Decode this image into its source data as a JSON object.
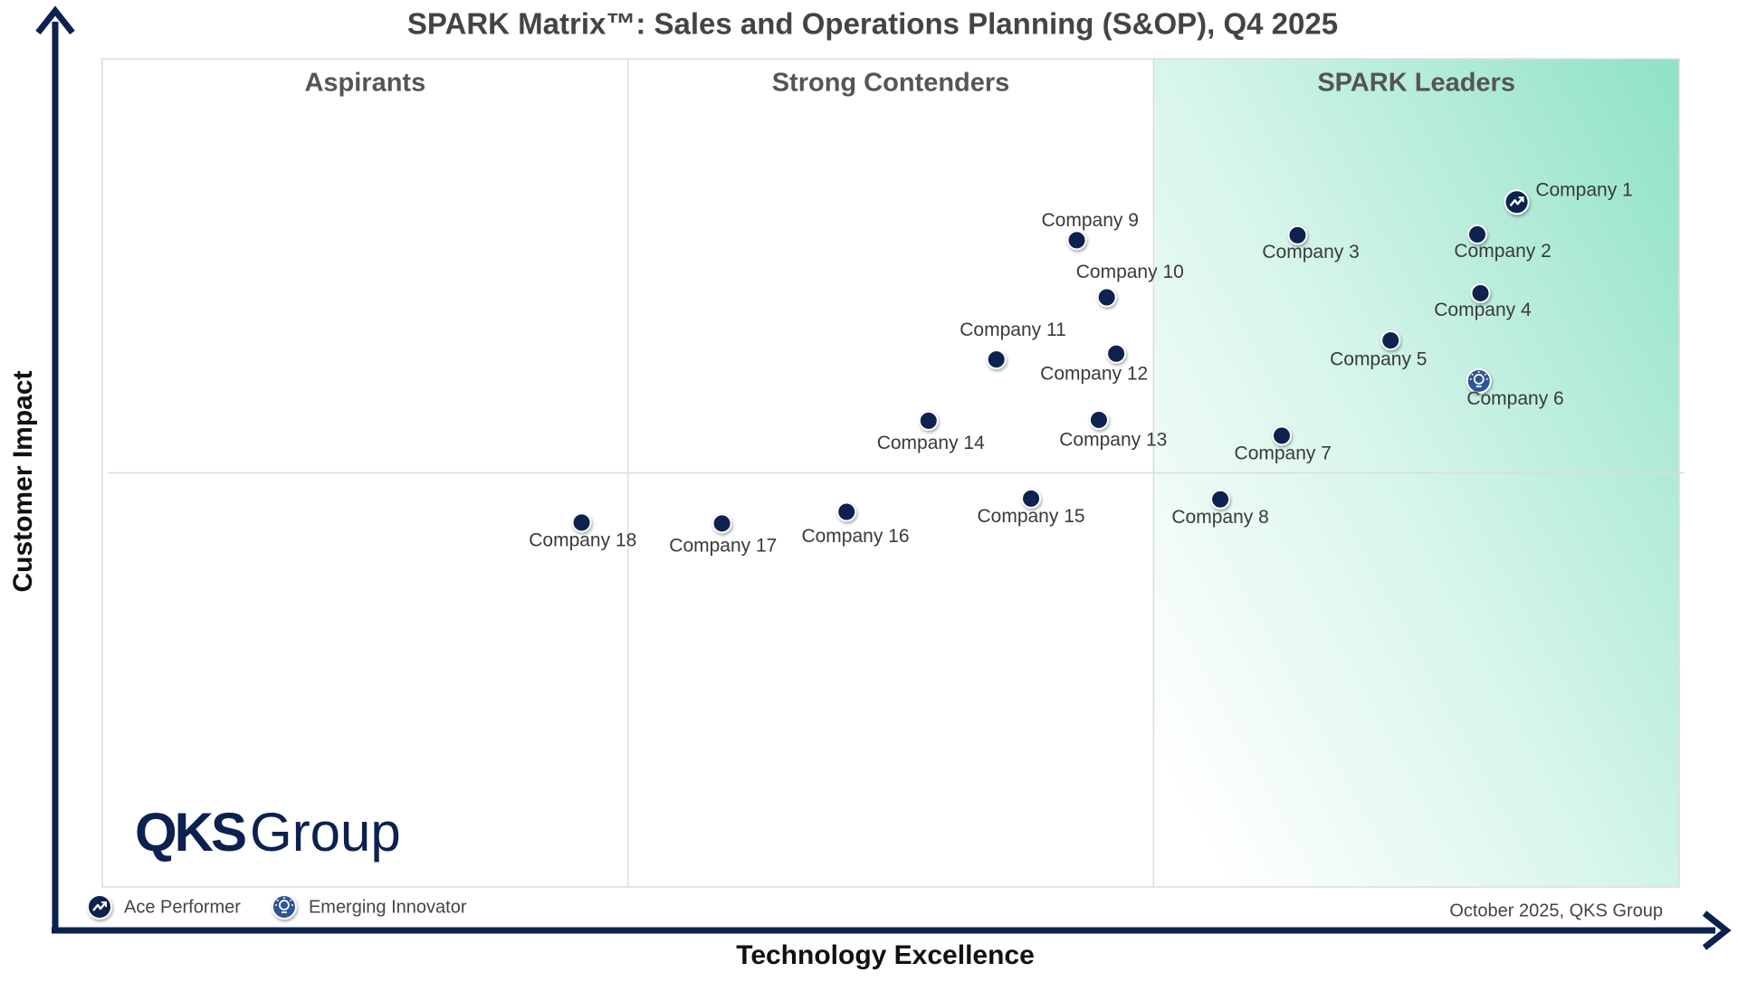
{
  "chart_data": {
    "type": "scatter",
    "title": "SPARK Matrix™: Sales and Operations Planning (S&OP), Q4 2025",
    "x_label": "Technology Excellence",
    "y_label": "Customer Impact",
    "quadrants": [
      "Aspirants",
      "Strong Contenders",
      "SPARK Leaders"
    ],
    "xlim": [
      0,
      100
    ],
    "ylim": [
      0,
      100
    ],
    "series": [
      {
        "name": "Ace Performer",
        "color": "#0b2150",
        "marker": "ace",
        "labels": [
          "Company 1"
        ],
        "x": [
          89.7
        ],
        "values": [
          82.7
        ]
      },
      {
        "name": "Emerging Innovator",
        "color": "#2f5597",
        "marker": "innovator",
        "labels": [
          "Company 6"
        ],
        "x": [
          87.3
        ],
        "values": [
          61.1
        ]
      },
      {
        "color": "#0b2150",
        "marker": "dot",
        "labels": [
          "Company 2",
          "Company 3",
          "Company 4",
          "Company 5",
          "Company 7",
          "Company 8",
          "Company 9",
          "Company 10",
          "Company 11",
          "Company 12",
          "Company 13",
          "Company 14",
          "Company 15",
          "Company 16",
          "Company 17",
          "Company 18"
        ],
        "x": [
          87.2,
          75.8,
          87.4,
          81.7,
          74.8,
          70.9,
          61.8,
          63.7,
          56.7,
          64.3,
          63.2,
          52.4,
          58.9,
          47.2,
          39.3,
          30.4
        ],
        "values": [
          78.8,
          78.7,
          71.7,
          66.0,
          54.5,
          46.8,
          78.1,
          71.2,
          63.7,
          64.4,
          56.4,
          56.3,
          46.9,
          45.3,
          43.9,
          44.0
        ]
      }
    ],
    "logo": [
      "QKS",
      "Group"
    ],
    "source": "October 2025, QKS Group"
  }
}
